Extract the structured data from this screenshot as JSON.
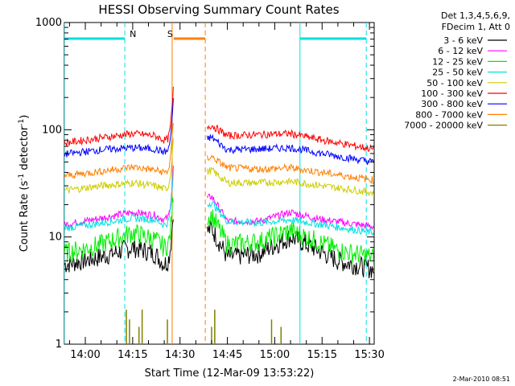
{
  "chart_data": {
    "type": "line",
    "title": "HESSI Observing Summary Count Rates",
    "xlabel": "Start Time (12-Mar-09 13:53:22)",
    "ylabel": "Count Rate (s⁻¹ detector⁻¹)",
    "ylabel_parts": {
      "pre": "Count Rate (s",
      "exp1": "-1",
      "mid": " detector",
      "exp2": "-1",
      "post": ")"
    },
    "yscale": "log",
    "xlim": [
      "13:53:22",
      "15:31:30"
    ],
    "ylim": [
      1,
      1000
    ],
    "x_ticks": [
      "14:00",
      "14:15",
      "14:30",
      "14:45",
      "15:00",
      "15:15",
      "15:30"
    ],
    "y_ticks": [
      {
        "value": 1,
        "label": "1"
      },
      {
        "value": 10,
        "label": "10"
      },
      {
        "value": 100,
        "label": "100"
      },
      {
        "value": 1000,
        "label": "1000"
      }
    ],
    "legend_header": [
      "Det 1,3,4,5,6,9,",
      "FDecim 1, Att 0"
    ],
    "legend_placement": "right",
    "series": [
      {
        "name": "3 - 6 keV",
        "color": "#000000",
        "level": [
          [
            "13:53",
            5.5
          ],
          [
            "14:05",
            6.5
          ],
          [
            "14:15",
            8.0
          ],
          [
            "14:22",
            7.0
          ],
          [
            "14:25",
            5.6
          ],
          [
            "14:40",
            12.0
          ],
          [
            "14:45",
            6.5
          ],
          [
            "14:55",
            7.0
          ],
          [
            "15:05",
            10.0
          ],
          [
            "15:12",
            8.0
          ],
          [
            "15:20",
            6.0
          ],
          [
            "15:31",
            5.0
          ]
        ]
      },
      {
        "name": "6 - 12 keV",
        "color": "#ff00ff",
        "level": [
          [
            "13:53",
            13.0
          ],
          [
            "14:05",
            15.0
          ],
          [
            "14:15",
            17.0
          ],
          [
            "14:22",
            16.0
          ],
          [
            "14:25",
            14.5
          ],
          [
            "14:40",
            24.0
          ],
          [
            "14:45",
            14.0
          ],
          [
            "14:55",
            14.0
          ],
          [
            "15:05",
            17.0
          ],
          [
            "15:15",
            14.5
          ],
          [
            "15:31",
            12.5
          ]
        ]
      },
      {
        "name": "12 - 25 keV",
        "color": "#00ee00",
        "level": [
          [
            "13:53",
            7.0
          ],
          [
            "14:05",
            8.5
          ],
          [
            "14:15",
            11.0
          ],
          [
            "14:22",
            9.5
          ],
          [
            "14:25",
            8.0
          ],
          [
            "14:40",
            16.0
          ],
          [
            "14:45",
            8.5
          ],
          [
            "14:55",
            9.0
          ],
          [
            "15:05",
            11.5
          ],
          [
            "15:12",
            9.5
          ],
          [
            "15:20",
            7.5
          ],
          [
            "15:31",
            6.5
          ]
        ]
      },
      {
        "name": "25 - 50 keV",
        "color": "#00e0e0",
        "level": [
          [
            "13:53",
            12.0
          ],
          [
            "14:05",
            13.5
          ],
          [
            "14:15",
            15.0
          ],
          [
            "14:22",
            14.5
          ],
          [
            "14:25",
            13.0
          ],
          [
            "14:40",
            21.0
          ],
          [
            "14:45",
            14.0
          ],
          [
            "14:55",
            13.5
          ],
          [
            "15:05",
            14.5
          ],
          [
            "15:15",
            13.0
          ],
          [
            "15:31",
            11.0
          ]
        ]
      },
      {
        "name": "50 - 100 keV",
        "color": "#cccc00",
        "level": [
          [
            "13:53",
            27.0
          ],
          [
            "14:05",
            30.0
          ],
          [
            "14:15",
            32.0
          ],
          [
            "14:22",
            30.0
          ],
          [
            "14:25",
            28.0
          ],
          [
            "14:40",
            42.0
          ],
          [
            "14:45",
            32.0
          ],
          [
            "14:55",
            32.0
          ],
          [
            "15:05",
            33.0
          ],
          [
            "15:15",
            30.0
          ],
          [
            "15:31",
            26.0
          ]
        ]
      },
      {
        "name": "100 - 300 keV",
        "color": "#ff0000",
        "level": [
          [
            "13:53",
            75.0
          ],
          [
            "14:05",
            84.0
          ],
          [
            "14:15",
            92.0
          ],
          [
            "14:22",
            88.0
          ],
          [
            "14:25",
            80.0
          ],
          [
            "14:40",
            110.0
          ],
          [
            "14:45",
            88.0
          ],
          [
            "14:55",
            90.0
          ],
          [
            "15:05",
            92.0
          ],
          [
            "15:15",
            80.0
          ],
          [
            "15:31",
            66.0
          ]
        ]
      },
      {
        "name": "300 - 800 keV",
        "color": "#0000ff",
        "level": [
          [
            "13:53",
            59.0
          ],
          [
            "14:05",
            65.0
          ],
          [
            "14:15",
            68.0
          ],
          [
            "14:22",
            66.0
          ],
          [
            "14:25",
            62.0
          ],
          [
            "14:40",
            85.0
          ],
          [
            "14:45",
            65.0
          ],
          [
            "14:55",
            66.0
          ],
          [
            "15:05",
            68.0
          ],
          [
            "15:15",
            60.0
          ],
          [
            "15:31",
            50.0
          ]
        ]
      },
      {
        "name": "800 - 7000 keV",
        "color": "#ff8000",
        "level": [
          [
            "13:53",
            37.0
          ],
          [
            "14:05",
            41.0
          ],
          [
            "14:15",
            45.0
          ],
          [
            "14:22",
            42.0
          ],
          [
            "14:25",
            40.0
          ],
          [
            "14:40",
            56.0
          ],
          [
            "14:45",
            44.0
          ],
          [
            "14:55",
            43.0
          ],
          [
            "15:05",
            44.0
          ],
          [
            "15:15",
            40.0
          ],
          [
            "15:31",
            34.0
          ]
        ]
      },
      {
        "name": "7000 - 20000 keV",
        "color": "#808000",
        "level": []
      }
    ],
    "gaps": [
      [
        "14:27:30",
        "14:38:30"
      ]
    ],
    "spike": {
      "time": "14:27",
      "peak": 170
    },
    "regions": [
      {
        "label": "",
        "color": "#00e0e0",
        "start": "13:53:22",
        "end": "14:12:30"
      },
      {
        "label": "N",
        "color": "#00e0e0",
        "start": "14:12:30",
        "end": "14:12:30"
      },
      {
        "label": "S",
        "color": "#ff8000",
        "start": "14:28:00",
        "end": "14:38:00"
      },
      {
        "label": "",
        "color": "#00e0e0",
        "start": "15:08:00",
        "end": "15:29:00"
      }
    ],
    "high_energy_spikes_time": [
      "14:13",
      "14:14",
      "14:17",
      "14:18",
      "14:26",
      "14:40",
      "14:41",
      "14:59",
      "15:02"
    ]
  },
  "footer": {
    "date": "2-Mar-2010 08:51"
  }
}
